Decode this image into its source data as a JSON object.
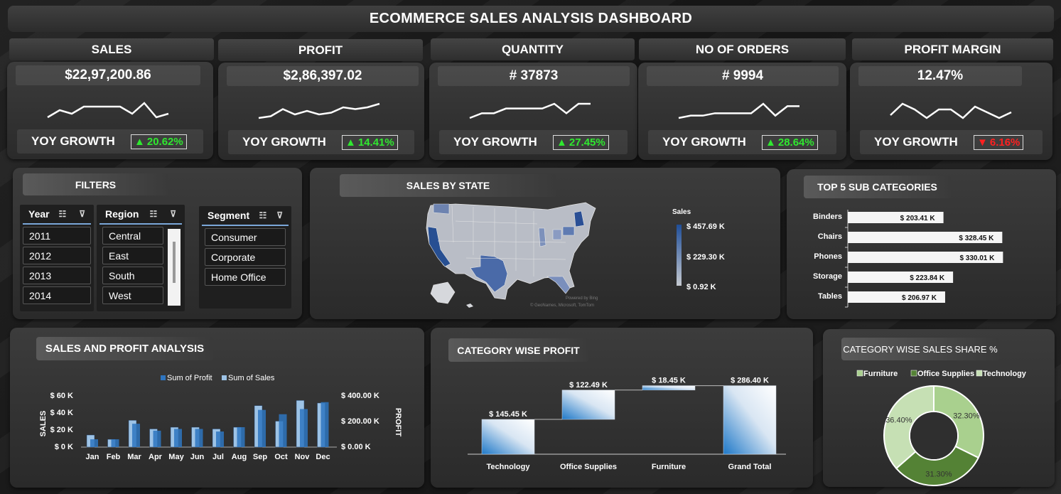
{
  "dashboard": {
    "title": "ECOMMERCE SALES ANALYSIS DASHBOARD"
  },
  "kpis": [
    {
      "label": "SALES",
      "value": "$22,97,200.86",
      "yoy_label": "YOY GROWTH",
      "yoy": "20.62%",
      "trend": "up",
      "spark": [
        3,
        5,
        4,
        6,
        6,
        6,
        6,
        4,
        7,
        3,
        4
      ]
    },
    {
      "label": "PROFIT",
      "value": "$2,86,397.02",
      "yoy_label": "YOY GROWTH",
      "yoy": "14.41%",
      "trend": "up",
      "spark": [
        2,
        3,
        7,
        4,
        6,
        4,
        5,
        8,
        7,
        8,
        10
      ]
    },
    {
      "label": "QUANTITY",
      "value": "# 37873",
      "yoy_label": "YOY GROWTH",
      "yoy": "27.45%",
      "trend": "up",
      "spark": [
        2,
        3,
        3,
        4,
        4,
        4,
        4,
        5,
        3,
        5,
        5
      ]
    },
    {
      "label": "NO OF ORDERS",
      "value": "# 9994",
      "yoy_label": "YOY GROWTH",
      "yoy": "28.64%",
      "trend": "up",
      "spark": [
        2,
        3,
        3,
        4,
        4,
        4,
        4,
        8,
        3,
        7,
        7
      ]
    },
    {
      "label": "PROFIT MARGIN",
      "value": "12.47%",
      "yoy_label": "YOY GROWTH",
      "yoy": "6.16%",
      "trend": "down",
      "spark": [
        5,
        9,
        7,
        4,
        7,
        7,
        4,
        8,
        6,
        4,
        6
      ]
    }
  ],
  "filters": {
    "title": "FILTERS",
    "year": {
      "label": "Year",
      "items": [
        "2011",
        "2012",
        "2013",
        "2014"
      ]
    },
    "region": {
      "label": "Region",
      "items": [
        "Central",
        "East",
        "South",
        "West"
      ]
    },
    "segment": {
      "label": "Segment",
      "items": [
        "Consumer",
        "Corporate",
        "Home Office"
      ]
    },
    "icons": {
      "multiselect": "multi-select-icon",
      "clear": "clear-filter-icon"
    }
  },
  "map": {
    "title": "SALES BY STATE",
    "legend_title": "Sales",
    "legend_max": "$ 457.69 K",
    "legend_mid": "$ 229.30 K",
    "legend_min": "$ 0.92 K",
    "credit1": "Powered by Bing",
    "credit2": "© GeoNames, Microsoft, TomTom",
    "colors": {
      "high": "#1f4e99",
      "low": "#c5c9d0"
    }
  },
  "top5": {
    "title": "TOP 5 SUB CATEGORIES",
    "chart_data": {
      "type": "bar",
      "categories": [
        "Binders",
        "Chairs",
        "Phones",
        "Storage",
        "Tables"
      ],
      "values": [
        203.41,
        328.45,
        330.01,
        223.84,
        206.97
      ],
      "labels": [
        "$ 203.41 K",
        "$ 328.45 K",
        "$ 330.01 K",
        "$ 223.84 K",
        "$ 206.97 K"
      ]
    }
  },
  "sales_profit": {
    "title": "SALES AND PROFIT ANALYSIS",
    "legend": [
      "Sum of Profit",
      "Sum of Sales"
    ],
    "y_left_label": "SALES",
    "y_right_label": "PROFIT",
    "y_left_ticks": [
      "$ 60 K",
      "$ 40 K",
      "$ 20 K",
      "$ 0 K"
    ],
    "y_right_ticks": [
      "$ 400.00 K",
      "$ 200.00 K",
      "$ 0.00 K"
    ],
    "chart_data": {
      "type": "bar",
      "categories": [
        "Jan",
        "Feb",
        "Mar",
        "Apr",
        "May",
        "Jun",
        "Jul",
        "Aug",
        "Sep",
        "Oct",
        "Nov",
        "Dec"
      ],
      "series": [
        {
          "name": "Sum of Profit",
          "values": [
            9,
            9,
            27,
            19,
            21,
            21,
            18,
            23,
            43,
            38,
            44,
            52
          ],
          "color": "#2e75c0"
        },
        {
          "name": "Sum of Sales",
          "values": [
            14,
            9,
            31,
            21,
            23,
            23,
            21,
            23,
            48,
            30,
            54,
            51
          ],
          "color": "#9dc3e6"
        }
      ],
      "ylim": [
        0,
        60
      ]
    }
  },
  "cat_profit": {
    "title": "CATEGORY WISE PROFIT",
    "chart_data": {
      "type": "bar",
      "categories": [
        "Technology",
        "Office Supplies",
        "Furniture",
        "Grand Total"
      ],
      "values": [
        145.45,
        122.49,
        18.45,
        286.4
      ],
      "labels": [
        "$ 145.45 K",
        "$ 122.49 K",
        "$ 18.45 K",
        "$ 286.40 K"
      ]
    }
  },
  "cat_share": {
    "title": "CATEGORY WISE SALES SHARE %",
    "legend": [
      "Furniture",
      "Office Supplies",
      "Technology"
    ],
    "chart_data": {
      "type": "pie",
      "categories": [
        "Furniture",
        "Office Supplies",
        "Technology"
      ],
      "values": [
        32.3,
        31.3,
        36.4
      ],
      "labels": [
        "32.30%",
        "31.30%",
        "36.40%"
      ],
      "colors": [
        "#a9d08e",
        "#548235",
        "#c6e0b4"
      ]
    }
  }
}
